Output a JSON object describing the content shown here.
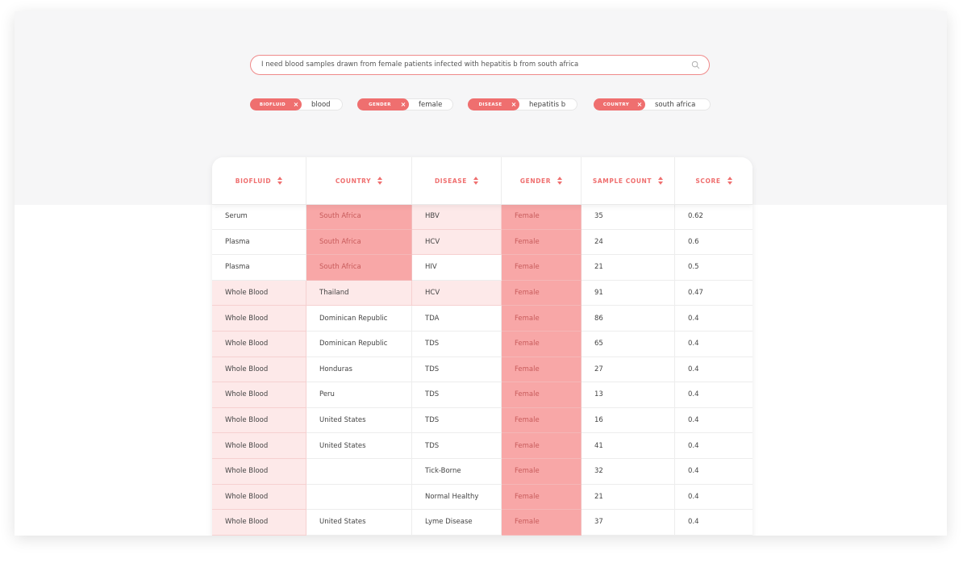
{
  "search": {
    "query": "I need blood samples drawn from female patients infected with hepatitis b from south africa",
    "icon": "search-icon"
  },
  "filters": [
    {
      "tag": "BIOFLUID",
      "value": "blood"
    },
    {
      "tag": "GENDER",
      "value": "female"
    },
    {
      "tag": "DISEASE",
      "value": "hepatitis b"
    },
    {
      "tag": "COUNTRY",
      "value": "south africa"
    }
  ],
  "colors": {
    "accent": "#ef6f6f",
    "highlight_strong": "#f8a7a7",
    "highlight_light": "#fde9e9"
  },
  "table": {
    "columns": [
      "BIOFLUID",
      "COUNTRY",
      "DISEASE",
      "GENDER",
      "SAMPLE COUNT",
      "SCORE"
    ],
    "rows": [
      [
        "Serum",
        "South Africa",
        "HBV",
        "Female",
        "35",
        "0.62"
      ],
      [
        "Plasma",
        "South Africa",
        "HCV",
        "Female",
        "24",
        "0.6"
      ],
      [
        "Plasma",
        "South Africa",
        "HIV",
        "Female",
        "21",
        "0.5"
      ],
      [
        "Whole Blood",
        "Thailand",
        "HCV",
        "Female",
        "91",
        "0.47"
      ],
      [
        "Whole Blood",
        "Dominican Republic",
        "TDA",
        "Female",
        "86",
        "0.4"
      ],
      [
        "Whole Blood",
        "Dominican Republic",
        "TDS",
        "Female",
        "65",
        "0.4"
      ],
      [
        "Whole Blood",
        "Honduras",
        "TDS",
        "Female",
        "27",
        "0.4"
      ],
      [
        "Whole Blood",
        "Peru",
        "TDS",
        "Female",
        "13",
        "0.4"
      ],
      [
        "Whole Blood",
        "United States",
        "TDS",
        "Female",
        "16",
        "0.4"
      ],
      [
        "Whole Blood",
        "United States",
        "TDS",
        "Female",
        "41",
        "0.4"
      ],
      [
        "Whole Blood",
        "",
        "Tick-Borne",
        "Female",
        "32",
        "0.4"
      ],
      [
        "Whole Blood",
        "",
        "Normal Healthy",
        "Female",
        "21",
        "0.4"
      ],
      [
        "Whole Blood",
        "United States",
        "Lyme Disease",
        "Female",
        "37",
        "0.4"
      ]
    ],
    "highlights": [
      [
        "none",
        "strong",
        "light",
        "strong",
        "none",
        "none"
      ],
      [
        "none",
        "strong",
        "light",
        "strong",
        "none",
        "none"
      ],
      [
        "none",
        "strong",
        "none",
        "strong",
        "none",
        "none"
      ],
      [
        "light",
        "light",
        "light",
        "strong",
        "none",
        "none"
      ],
      [
        "light",
        "none",
        "none",
        "strong",
        "none",
        "none"
      ],
      [
        "light",
        "none",
        "none",
        "strong",
        "none",
        "none"
      ],
      [
        "light",
        "none",
        "none",
        "strong",
        "none",
        "none"
      ],
      [
        "light",
        "none",
        "none",
        "strong",
        "none",
        "none"
      ],
      [
        "light",
        "none",
        "none",
        "strong",
        "none",
        "none"
      ],
      [
        "light",
        "none",
        "none",
        "strong",
        "none",
        "none"
      ],
      [
        "light",
        "none",
        "none",
        "strong",
        "none",
        "none"
      ],
      [
        "light",
        "none",
        "none",
        "strong",
        "none",
        "none"
      ],
      [
        "light",
        "none",
        "none",
        "strong",
        "none",
        "none"
      ]
    ]
  }
}
